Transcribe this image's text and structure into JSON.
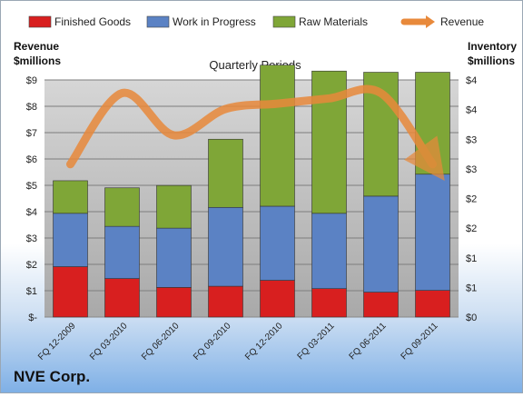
{
  "chart_data": {
    "type": "bar",
    "subtitle": "Quarterly Periods",
    "categories": [
      "FQ 12-2009",
      "FQ 03-2010",
      "FQ 06-2010",
      "FQ 09-2010",
      "FQ 12-2010",
      "FQ 03-2011",
      "FQ 06-2011",
      "FQ 09-2011"
    ],
    "series": [
      {
        "name": "Finished Goods",
        "axis": "right",
        "values": [
          0.85,
          0.65,
          0.5,
          0.52,
          0.62,
          0.48,
          0.42,
          0.45
        ],
        "color": "#d81f1f"
      },
      {
        "name": "Work in Progress",
        "axis": "right",
        "values": [
          0.9,
          0.88,
          1.0,
          1.33,
          1.25,
          1.27,
          1.62,
          1.96
        ],
        "color": "#5b82c4"
      },
      {
        "name": "Raw Materials",
        "axis": "right",
        "values": [
          0.55,
          0.65,
          0.72,
          1.15,
          2.38,
          2.4,
          2.09,
          1.72
        ],
        "color": "#7fa637"
      },
      {
        "name": "Revenue",
        "type": "line",
        "axis": "left",
        "values": [
          5.8,
          8.5,
          6.9,
          7.9,
          8.1,
          8.3,
          8.5,
          5.8
        ],
        "color": "#e8893b"
      }
    ],
    "left_axis": {
      "label_line1": "Revenue",
      "label_line2": "$millions",
      "range": [
        0,
        9
      ],
      "ticks": [
        "$-",
        "$1",
        "$2",
        "$3",
        "$4",
        "$5",
        "$6",
        "$7",
        "$8",
        "$9"
      ]
    },
    "right_axis": {
      "label_line1": "Inventory",
      "label_line2": "$millions",
      "range": [
        0,
        4
      ],
      "ticks": [
        "$0",
        "$1",
        "$1",
        "$2",
        "$2",
        "$3",
        "$3",
        "$4",
        "$4"
      ]
    },
    "legend_position": "top",
    "grid": true
  },
  "company": "NVE Corp."
}
